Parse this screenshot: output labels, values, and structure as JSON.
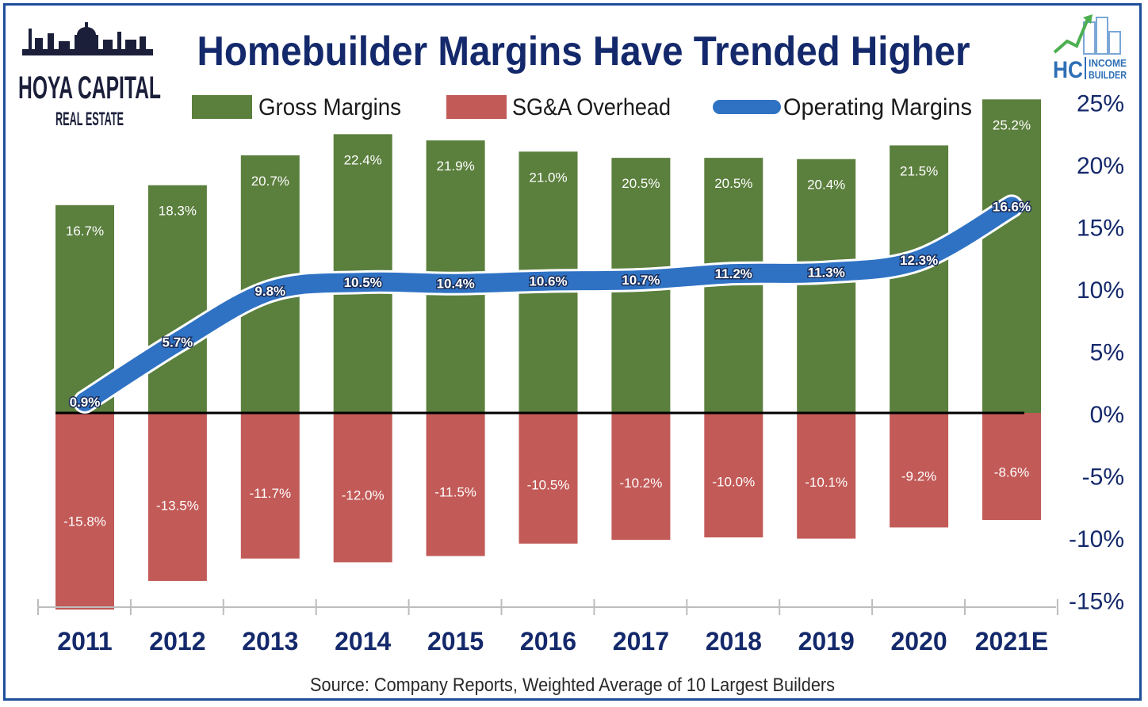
{
  "header": {
    "title": "Homebuilder Margins Have Trended Higher",
    "logo_left": {
      "line1": "HOYA CAPITAL",
      "line2": "REAL ESTATE"
    },
    "logo_right": {
      "mark": "HC",
      "line1": "INCOME",
      "line2": "BUILDER"
    }
  },
  "source_note": "Source: Company Reports, Weighted Average of 10 Largest Builders",
  "colors": {
    "gross": "#5b7f3d",
    "sga": "#c25a57",
    "operating": "#2f72c4",
    "title": "#14296b",
    "frame": "#1f4e9a"
  },
  "chart_data": {
    "type": "bar",
    "title": "Homebuilder Margins Have Trended Higher",
    "categories": [
      "2011",
      "2012",
      "2013",
      "2014",
      "2015",
      "2016",
      "2017",
      "2018",
      "2019",
      "2020",
      "2021E"
    ],
    "series": [
      {
        "name": "Gross Margins",
        "type": "bar",
        "color": "#5b7f3d",
        "values": [
          16.7,
          18.3,
          20.7,
          22.4,
          21.9,
          21.0,
          20.5,
          20.5,
          20.4,
          21.5,
          25.2
        ],
        "labels": [
          "16.7%",
          "18.3%",
          "20.7%",
          "22.4%",
          "21.9%",
          "21.0%",
          "20.5%",
          "20.5%",
          "20.4%",
          "21.5%",
          "25.2%"
        ]
      },
      {
        "name": "SG&A Overhead",
        "type": "bar",
        "color": "#c25a57",
        "values": [
          -15.8,
          -13.5,
          -11.7,
          -12.0,
          -11.5,
          -10.5,
          -10.2,
          -10.0,
          -10.1,
          -9.2,
          -8.6
        ],
        "labels": [
          "-15.8%",
          "-13.5%",
          "-11.7%",
          "-12.0%",
          "-11.5%",
          "-10.5%",
          "-10.2%",
          "-10.0%",
          "-10.1%",
          "-9.2%",
          "-8.6%"
        ]
      },
      {
        "name": "Operating Margins",
        "type": "line",
        "color": "#2f72c4",
        "values": [
          0.9,
          5.7,
          9.8,
          10.5,
          10.4,
          10.6,
          10.7,
          11.2,
          11.3,
          12.3,
          16.6
        ],
        "labels": [
          "0.9%",
          "5.7%",
          "9.8%",
          "10.5%",
          "10.4%",
          "10.6%",
          "10.7%",
          "11.2%",
          "11.3%",
          "12.3%",
          "16.6%"
        ]
      }
    ],
    "y_axis": {
      "position": "right",
      "ylim": [
        -15,
        25
      ],
      "ticks": [
        25,
        20,
        15,
        10,
        5,
        0,
        -5,
        -10,
        -15
      ],
      "tick_labels": [
        "25%",
        "20%",
        "15%",
        "10%",
        "5%",
        "0%",
        "-5%",
        "-10%",
        "-15%"
      ]
    },
    "legend_position": "top",
    "grid": false
  }
}
